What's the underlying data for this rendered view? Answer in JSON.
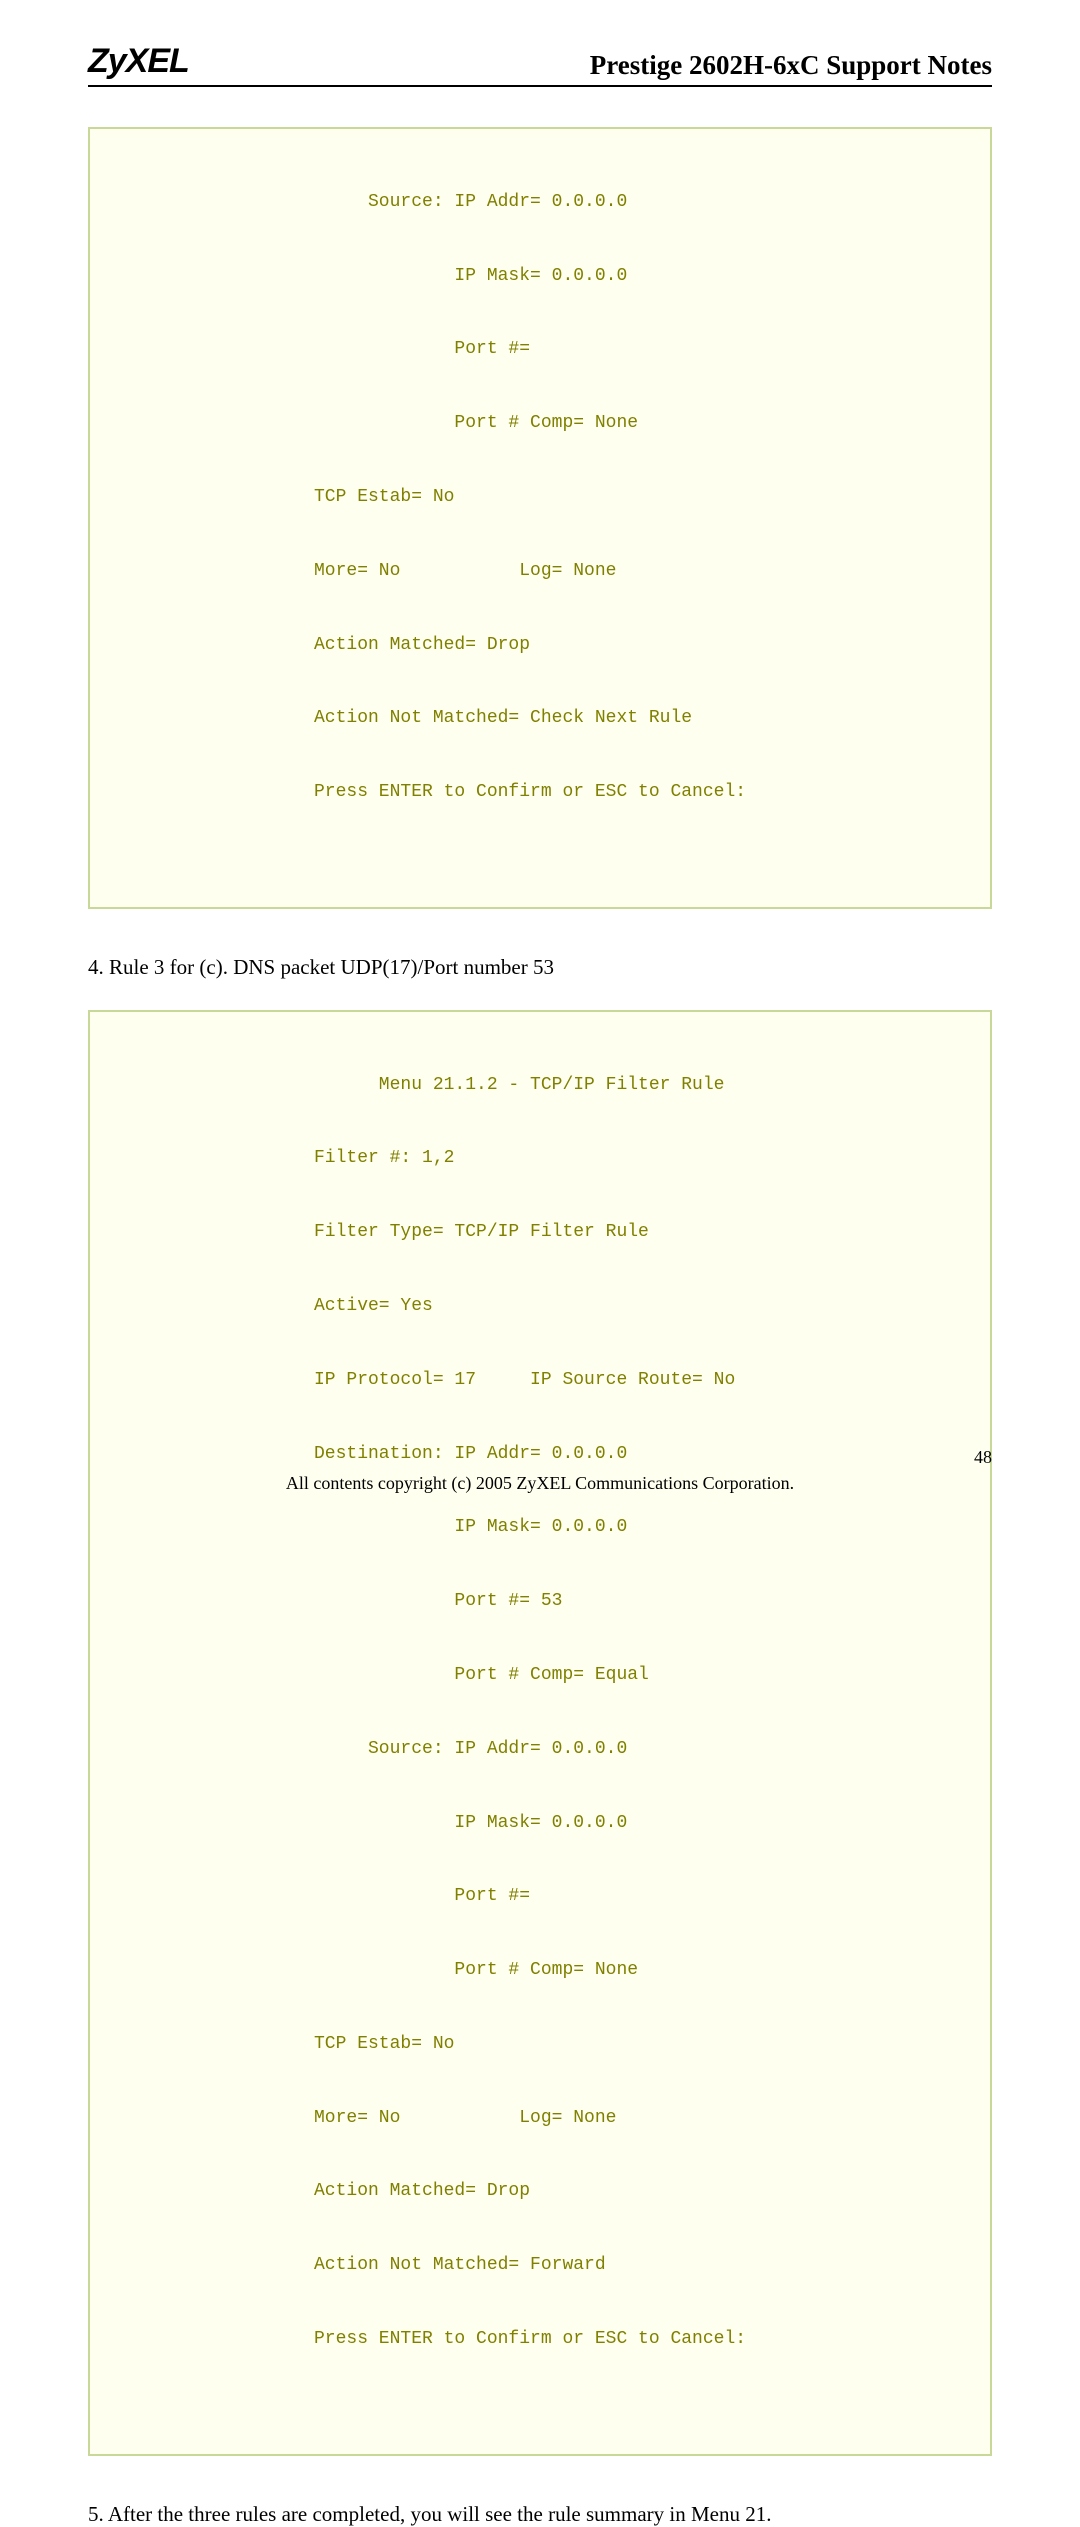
{
  "header": {
    "logo": "ZyXEL",
    "title": "Prestige 2602H-6xC Support Notes"
  },
  "codeblock1": {
    "colors": {
      "bg": "#fffff0",
      "border": "#c8d898",
      "text": "#808000"
    },
    "lines": [
      "     Source: IP Addr= 0.0.0.0",
      "             IP Mask= 0.0.0.0",
      "             Port #=",
      "             Port # Comp= None",
      "TCP Estab= No",
      "More= No           Log= None",
      "Action Matched= Drop",
      "Action Not Matched= Check Next Rule",
      "Press ENTER to Confirm or ESC to Cancel:"
    ]
  },
  "rule_desc": "4. Rule 3 for (c). DNS packet UDP(17)/Port number 53",
  "codeblock2": {
    "colors": {
      "bg": "#fffff0",
      "border": "#c8d898",
      "text": "#808000"
    },
    "lines": [
      "      Menu 21.1.2 - TCP/IP Filter Rule",
      "Filter #: 1,2",
      "Filter Type= TCP/IP Filter Rule",
      "Active= Yes",
      "IP Protocol= 17     IP Source Route= No",
      "Destination: IP Addr= 0.0.0.0",
      "             IP Mask= 0.0.0.0",
      "             Port #= 53",
      "             Port # Comp= Equal",
      "     Source: IP Addr= 0.0.0.0",
      "             IP Mask= 0.0.0.0",
      "             Port #=",
      "             Port # Comp= None",
      "TCP Estab= No",
      "More= No           Log= None",
      "Action Matched= Drop",
      "Action Not Matched= Forward",
      "Press ENTER to Confirm or ESC to Cancel:"
    ]
  },
  "body_text": "5. After the three rules are completed, you will see the rule summary in Menu 21.",
  "footer": {
    "copyright": "All contents copyright (c) 2005 ZyXEL Communications Corporation.",
    "page": "48"
  }
}
